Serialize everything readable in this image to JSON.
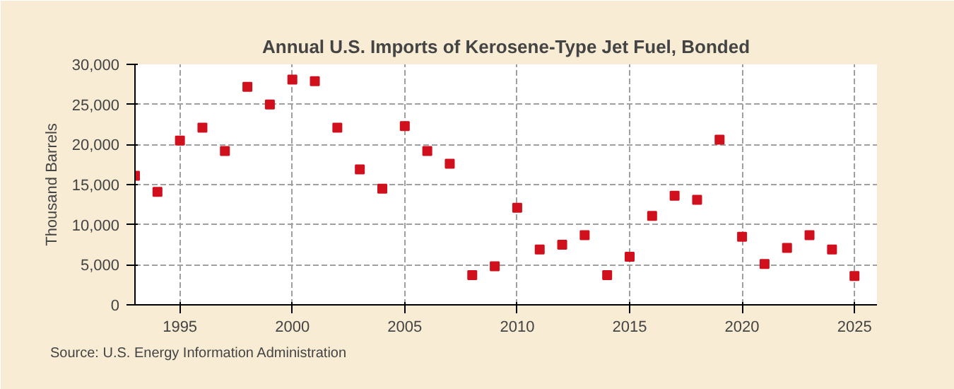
{
  "chart_data": {
    "type": "scatter",
    "title": "Annual U.S. Imports of Kerosene-Type Jet Fuel, Bonded",
    "ylabel": "Thousand Barrels",
    "x": [
      1993,
      1994,
      1995,
      1996,
      1997,
      1998,
      1999,
      2000,
      2001,
      2002,
      2003,
      2004,
      2005,
      2006,
      2007,
      2008,
      2009,
      2010,
      2011,
      2012,
      2013,
      2014,
      2015,
      2016,
      2017,
      2018,
      2019,
      2020,
      2021,
      2022,
      2023,
      2024,
      2025
    ],
    "series": [
      {
        "color": "#d0101c",
        "values": [
          16100,
          14100,
          20500,
          22100,
          19200,
          27200,
          25000,
          28100,
          27900,
          22100,
          16900,
          14500,
          22300,
          19200,
          17600,
          3700,
          4800,
          12100,
          6900,
          7500,
          8700,
          3700,
          6000,
          11100,
          13600,
          13100,
          20600,
          8500,
          5100,
          7100,
          8700,
          6900,
          3600
        ]
      }
    ],
    "xlim": [
      1993,
      2026
    ],
    "xticks": [
      1995,
      2000,
      2005,
      2010,
      2015,
      2020,
      2025
    ],
    "ylim": [
      0,
      30000
    ],
    "yticks": [
      {
        "value": 0,
        "label": "0"
      },
      {
        "value": 5000,
        "label": "5,000"
      },
      {
        "value": 10000,
        "label": "10,000"
      },
      {
        "value": 15000,
        "label": "15,000"
      },
      {
        "value": 20000,
        "label": "20,000"
      },
      {
        "value": 25000,
        "label": "25,000"
      },
      {
        "value": 30000,
        "label": "30,000"
      }
    ],
    "grid": true,
    "marker": "square",
    "annotations": [
      "Source: U.S. Energy Information Administration"
    ]
  }
}
